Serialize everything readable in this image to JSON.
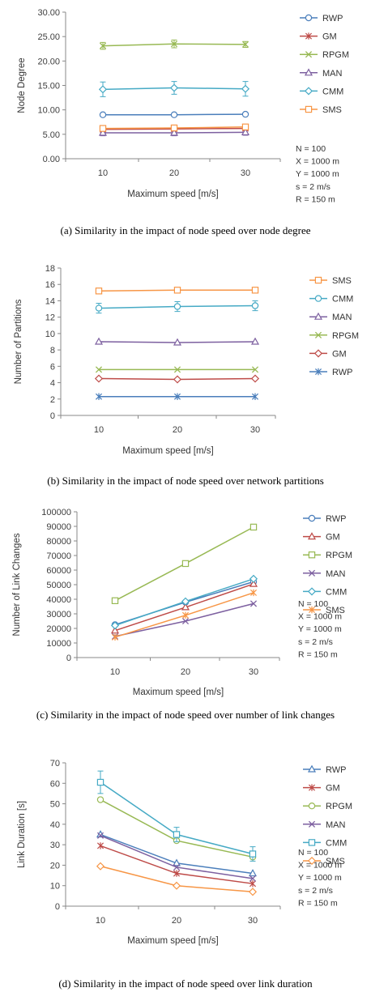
{
  "chart_data": [
    {
      "type": "line",
      "ylabel": "Node Degree",
      "xlabel": "Maximum speed [m/s]",
      "caption": "(a) Similarity in the impact of node speed over node degree",
      "x": [
        10,
        20,
        30
      ],
      "y_ticks": [
        "0.00",
        "5.00",
        "10.00",
        "15.00",
        "20.00",
        "25.00",
        "30.00"
      ],
      "ylim": [
        0,
        30
      ],
      "legend_position": "right",
      "params": [
        "N = 100",
        "X = 1000 m",
        "Y = 1000 m",
        "s = 2 m/s",
        "R = 150 m"
      ],
      "series": [
        {
          "name": "RWP",
          "values": [
            9.0,
            9.0,
            9.1
          ],
          "err": [
            0.2,
            0.2,
            0.2
          ],
          "color": "#4a7ebb",
          "marker": "circle"
        },
        {
          "name": "GM",
          "values": [
            6.0,
            6.1,
            6.2
          ],
          "err": [
            0.2,
            0.2,
            0.2
          ],
          "color": "#be4b48",
          "marker": "star"
        },
        {
          "name": "RPGM",
          "values": [
            23.1,
            23.5,
            23.4
          ],
          "err": [
            0.7,
            0.8,
            0.6
          ],
          "color": "#98b954",
          "marker": "x"
        },
        {
          "name": "MAN",
          "values": [
            5.3,
            5.3,
            5.4
          ],
          "err": [
            0.6,
            0.6,
            0.6
          ],
          "color": "#7d60a0",
          "marker": "triangle"
        },
        {
          "name": "CMM",
          "values": [
            14.2,
            14.5,
            14.3
          ],
          "err": [
            1.5,
            1.3,
            1.5
          ],
          "color": "#46aac5",
          "marker": "diamond"
        },
        {
          "name": "SMS",
          "values": [
            6.2,
            6.3,
            6.5
          ],
          "err": [
            0.3,
            0.3,
            0.3
          ],
          "color": "#f79646",
          "marker": "square"
        }
      ]
    },
    {
      "type": "line",
      "ylabel": "Number of Partitions",
      "xlabel": "Maximum speed [m/s]",
      "caption": "(b) Similarity in the impact of node speed over network partitions",
      "x": [
        10,
        20,
        30
      ],
      "y_ticks": [
        "0",
        "2",
        "4",
        "6",
        "8",
        "10",
        "12",
        "14",
        "16",
        "18"
      ],
      "ylim": [
        0,
        18
      ],
      "legend_position": "right",
      "params": [],
      "series": [
        {
          "name": "SMS",
          "values": [
            15.2,
            15.3,
            15.3
          ],
          "err": [
            0,
            0,
            0
          ],
          "color": "#f79646",
          "marker": "square"
        },
        {
          "name": "CMM",
          "values": [
            13.1,
            13.3,
            13.4
          ],
          "err": [
            0.6,
            0.6,
            0.6
          ],
          "color": "#46aac5",
          "marker": "circle"
        },
        {
          "name": "MAN",
          "values": [
            9.0,
            8.9,
            9.0
          ],
          "err": [
            0,
            0,
            0
          ],
          "color": "#7d60a0",
          "marker": "triangle"
        },
        {
          "name": "RPGM",
          "values": [
            5.6,
            5.6,
            5.6
          ],
          "err": [
            0,
            0,
            0
          ],
          "color": "#98b954",
          "marker": "x"
        },
        {
          "name": "GM",
          "values": [
            4.5,
            4.4,
            4.5
          ],
          "err": [
            0,
            0,
            0
          ],
          "color": "#be4b48",
          "marker": "diamond"
        },
        {
          "name": "RWP",
          "values": [
            2.3,
            2.3,
            2.3
          ],
          "err": [
            0,
            0,
            0
          ],
          "color": "#4a7ebb",
          "marker": "star"
        }
      ]
    },
    {
      "type": "line",
      "ylabel": "Number of Link Changes",
      "xlabel": "Maximum speed [m/s]",
      "caption": "(c) Similarity in the impact of node speed over number of link changes",
      "x": [
        10,
        20,
        30
      ],
      "y_ticks": [
        "0",
        "10000",
        "20000",
        "30000",
        "40000",
        "50000",
        "60000",
        "70000",
        "80000",
        "90000",
        "100000"
      ],
      "ylim": [
        0,
        100000
      ],
      "legend_position": "right",
      "params": [
        "N = 100",
        "X = 1000 m",
        "Y = 1000 m",
        "s = 2 m/s",
        "R = 150 m"
      ],
      "series": [
        {
          "name": "RWP",
          "values": [
            22500,
            38000,
            52000
          ],
          "err": [
            0,
            0,
            0
          ],
          "color": "#4a7ebb",
          "marker": "circle"
        },
        {
          "name": "GM",
          "values": [
            18500,
            34500,
            50500
          ],
          "err": [
            0,
            0,
            0
          ],
          "color": "#be4b48",
          "marker": "triangle"
        },
        {
          "name": "RPGM",
          "values": [
            39000,
            64500,
            89500
          ],
          "err": [
            0,
            0,
            0
          ],
          "color": "#98b954",
          "marker": "square"
        },
        {
          "name": "MAN",
          "values": [
            14500,
            25000,
            37000
          ],
          "err": [
            0,
            0,
            0
          ],
          "color": "#7d60a0",
          "marker": "x"
        },
        {
          "name": "CMM",
          "values": [
            22000,
            38500,
            54000
          ],
          "err": [
            0,
            0,
            0
          ],
          "color": "#46aac5",
          "marker": "diamond"
        },
        {
          "name": "SMS",
          "values": [
            14000,
            29000,
            44500
          ],
          "err": [
            0,
            0,
            0
          ],
          "color": "#f79646",
          "marker": "star"
        }
      ]
    },
    {
      "type": "line",
      "ylabel": "Link Duration [s]",
      "xlabel": "Maximum speed [m/s]",
      "caption": "(d) Similarity in the impact of node speed over link duration",
      "x": [
        10,
        20,
        30
      ],
      "y_ticks": [
        "0",
        "10",
        "20",
        "30",
        "40",
        "50",
        "60",
        "70"
      ],
      "ylim": [
        0,
        70
      ],
      "legend_position": "right",
      "params": [
        "N = 100",
        "X = 1000 m",
        "Y = 1000 m",
        "s = 2 m/s",
        "R = 150 m"
      ],
      "series": [
        {
          "name": "RWP",
          "values": [
            35,
            21,
            16
          ],
          "err": [
            0,
            0,
            0
          ],
          "color": "#4a7ebb",
          "marker": "triangle"
        },
        {
          "name": "GM",
          "values": [
            29.5,
            16,
            11
          ],
          "err": [
            0,
            0,
            0
          ],
          "color": "#be4b48",
          "marker": "star"
        },
        {
          "name": "RPGM",
          "values": [
            52,
            32,
            24
          ],
          "err": [
            0,
            0,
            0
          ],
          "color": "#98b954",
          "marker": "circle"
        },
        {
          "name": "MAN",
          "values": [
            34.5,
            19,
            13.5
          ],
          "err": [
            0,
            0,
            0
          ],
          "color": "#7d60a0",
          "marker": "x"
        },
        {
          "name": "CMM",
          "values": [
            60.5,
            35,
            25.5
          ],
          "err": [
            5.5,
            3.5,
            3.5
          ],
          "color": "#46aac5",
          "marker": "square"
        },
        {
          "name": "SMS",
          "values": [
            19.5,
            10,
            7
          ],
          "err": [
            0,
            0,
            0
          ],
          "color": "#f79646",
          "marker": "diamond"
        }
      ]
    }
  ]
}
